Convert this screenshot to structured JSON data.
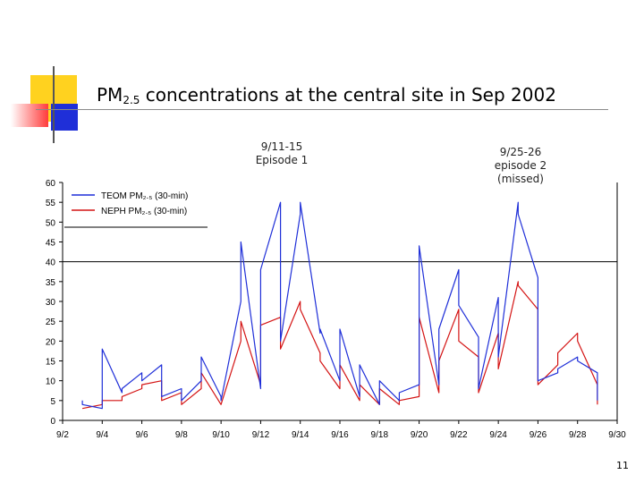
{
  "slide": {
    "title_main": "PM",
    "title_sub": "2.5",
    "title_rest": " concentrations at the central site in Sep 2002",
    "annotation_1_line1": "9/11-15",
    "annotation_1_line2": "Episode 1",
    "annotation_2_line1": "9/25-26",
    "annotation_2_line2": "episode 2",
    "annotation_2_line3": "(missed)",
    "page_number": "11",
    "accent_colors": {
      "yellow": "#ffd21f",
      "red": "#ff3b3b",
      "blue": "#1f2fd8",
      "divider": "#8a8a8a"
    }
  },
  "chart_data": {
    "type": "line",
    "title": "",
    "xlabel": "",
    "ylabel": "",
    "ylim": [
      0,
      60
    ],
    "y_ticks": [
      "0",
      "5",
      "10",
      "15",
      "20",
      "25",
      "30",
      "35",
      "40",
      "45",
      "50",
      "55",
      "60"
    ],
    "xlim": [
      "9/2",
      "9/30"
    ],
    "x_ticks": [
      "9/2",
      "9/4",
      "9/6",
      "9/8",
      "9/10",
      "9/12",
      "9/14",
      "9/16",
      "9/18",
      "9/20",
      "9/22",
      "9/24",
      "9/26",
      "9/28",
      "9/30"
    ],
    "reference_line_y": 40,
    "legend": {
      "placement": "top-left",
      "entries": [
        {
          "label": "TEOM PM₂.₅ (30-min)",
          "color": "#1f2fd8"
        },
        {
          "label": "NEPH PM₂.₅ (30-min)",
          "color": "#d41414"
        }
      ]
    },
    "series": [
      {
        "name": "TEOM PM₂.₅ (30-min)",
        "color": "#1f2fd8",
        "x": [
          "9/2",
          "9/3",
          "9/3",
          "9/4",
          "9/4",
          "9/5",
          "9/5",
          "9/6",
          "9/6",
          "9/7",
          "9/7",
          "9/8",
          "9/8",
          "9/9",
          "9/9",
          "9/10",
          "9/10",
          "9/11",
          "9/11",
          "9/12",
          "9/12",
          "9/13",
          "9/13",
          "9/14",
          "9/14",
          "9/15",
          "9/15",
          "9/16",
          "9/16",
          "9/17",
          "9/17",
          "9/18",
          "9/18",
          "9/19",
          "9/19",
          "9/20",
          "9/20",
          "9/21",
          "9/21",
          "9/22",
          "9/22",
          "9/23",
          "9/23",
          "9/24",
          "9/24",
          "9/25",
          "9/25",
          "9/26",
          "9/26",
          "9/27",
          "9/27",
          "9/28",
          "9/28",
          "9/29",
          "9/29",
          "9/30"
        ],
        "values": [
          null,
          5,
          4,
          3,
          18,
          7,
          8,
          12,
          10,
          14,
          6,
          8,
          5,
          10,
          16,
          6,
          5,
          30,
          45,
          8,
          38,
          55,
          20,
          52,
          55,
          22,
          23,
          10,
          23,
          6,
          14,
          4,
          10,
          5,
          7,
          9,
          44,
          9,
          23,
          38,
          29,
          21,
          8,
          31,
          16,
          55,
          52,
          36,
          10,
          12,
          13,
          16,
          15,
          12,
          5,
          null
        ]
      },
      {
        "name": "NEPH PM₂.₅ (30-min)",
        "color": "#d41414",
        "x": [
          "9/2",
          "9/3",
          "9/3",
          "9/4",
          "9/4",
          "9/5",
          "9/5",
          "9/6",
          "9/6",
          "9/7",
          "9/7",
          "9/8",
          "9/8",
          "9/9",
          "9/9",
          "9/10",
          "9/10",
          "9/11",
          "9/11",
          "9/12",
          "9/12",
          "9/13",
          "9/13",
          "9/14",
          "9/14",
          "9/15",
          "9/15",
          "9/16",
          "9/16",
          "9/17",
          "9/17",
          "9/18",
          "9/18",
          "9/19",
          "9/19",
          "9/20",
          "9/20",
          "9/21",
          "9/21",
          "9/22",
          "9/22",
          "9/23",
          "9/23",
          "9/24",
          "9/24",
          "9/25",
          "9/25",
          "9/26",
          "9/26",
          "9/27",
          "9/27",
          "9/28",
          "9/28",
          "9/29",
          "9/29",
          "9/30"
        ],
        "values": [
          null,
          3,
          3,
          4,
          5,
          5,
          6,
          8,
          9,
          10,
          5,
          7,
          4,
          8,
          12,
          4,
          4,
          20,
          25,
          9,
          24,
          26,
          18,
          30,
          28,
          17,
          15,
          8,
          14,
          5,
          9,
          4,
          8,
          4,
          5,
          6,
          26,
          7,
          15,
          28,
          20,
          16,
          7,
          22,
          13,
          35,
          34,
          28,
          9,
          14,
          17,
          22,
          20,
          9,
          4,
          null
        ]
      }
    ]
  }
}
